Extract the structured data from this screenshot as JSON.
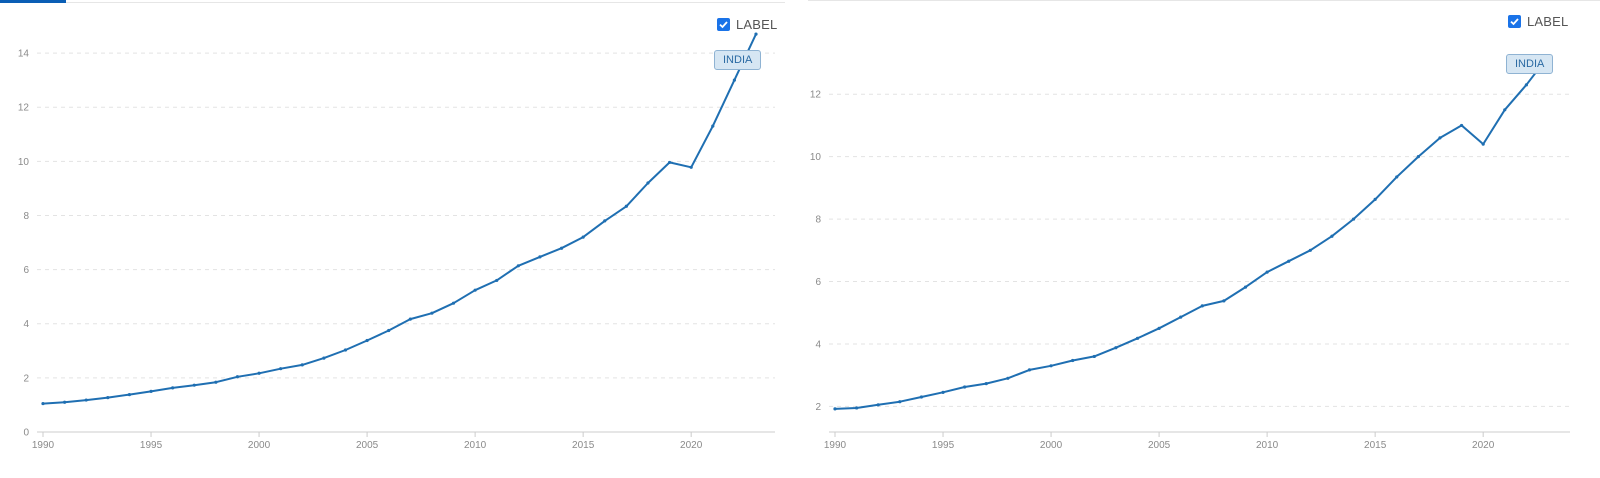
{
  "legend_label": "LABEL",
  "series_name": "INDIA",
  "colors": {
    "line": "#1f6fb2",
    "grid": "#e3e3e3",
    "axis": "#cccccc",
    "tick_text": "#8a8a8a",
    "checkbox": "#1a73e8"
  },
  "chart_data": [
    {
      "type": "line",
      "title": "",
      "xlabel": "",
      "ylabel": "",
      "xlim": [
        1990,
        2023
      ],
      "ylim": [
        0,
        15
      ],
      "x_ticks": [
        1990,
        1995,
        2000,
        2005,
        2010,
        2015,
        2020
      ],
      "y_ticks": [
        0,
        2,
        4,
        6,
        8,
        10,
        12,
        14
      ],
      "grid": "horizontal dashed",
      "legend": "top-right",
      "series": [
        {
          "name": "INDIA",
          "x": [
            1990,
            1991,
            1992,
            1993,
            1994,
            1995,
            1996,
            1997,
            1998,
            1999,
            2000,
            2001,
            2002,
            2003,
            2004,
            2005,
            2006,
            2007,
            2008,
            2009,
            2010,
            2011,
            2012,
            2013,
            2014,
            2015,
            2016,
            2017,
            2018,
            2019,
            2020,
            2021,
            2022,
            2023
          ],
          "values": [
            1.05,
            1.1,
            1.18,
            1.27,
            1.38,
            1.5,
            1.63,
            1.73,
            1.84,
            2.04,
            2.17,
            2.34,
            2.48,
            2.73,
            3.03,
            3.38,
            3.75,
            4.17,
            4.39,
            4.76,
            5.24,
            5.6,
            6.14,
            6.47,
            6.79,
            7.2,
            7.8,
            8.34,
            9.2,
            9.96,
            9.78,
            11.3,
            13.0,
            14.7
          ]
        }
      ]
    },
    {
      "type": "line",
      "title": "",
      "xlabel": "",
      "ylabel": "",
      "xlim": [
        1990,
        2023
      ],
      "ylim": [
        1.5,
        13.8
      ],
      "x_ticks": [
        1990,
        1995,
        2000,
        2005,
        2010,
        2015,
        2020
      ],
      "y_ticks": [
        2,
        4,
        6,
        8,
        10,
        12
      ],
      "grid": "horizontal dashed",
      "legend": "top-right",
      "series": [
        {
          "name": "INDIA",
          "x": [
            1990,
            1991,
            1992,
            1993,
            1994,
            1995,
            1996,
            1997,
            1998,
            1999,
            2000,
            2001,
            2002,
            2003,
            2004,
            2005,
            2006,
            2007,
            2008,
            2009,
            2010,
            2011,
            2012,
            2013,
            2014,
            2015,
            2016,
            2017,
            2018,
            2019,
            2020,
            2021,
            2022,
            2023
          ],
          "values": [
            1.92,
            1.95,
            2.05,
            2.15,
            2.3,
            2.45,
            2.62,
            2.73,
            2.9,
            3.17,
            3.3,
            3.47,
            3.6,
            3.88,
            4.18,
            4.5,
            4.86,
            5.22,
            5.38,
            5.82,
            6.3,
            6.65,
            7.0,
            7.45,
            8.0,
            8.63,
            9.35,
            10.0,
            10.6,
            11.0,
            10.4,
            11.5,
            12.3,
            13.2
          ]
        }
      ]
    }
  ]
}
